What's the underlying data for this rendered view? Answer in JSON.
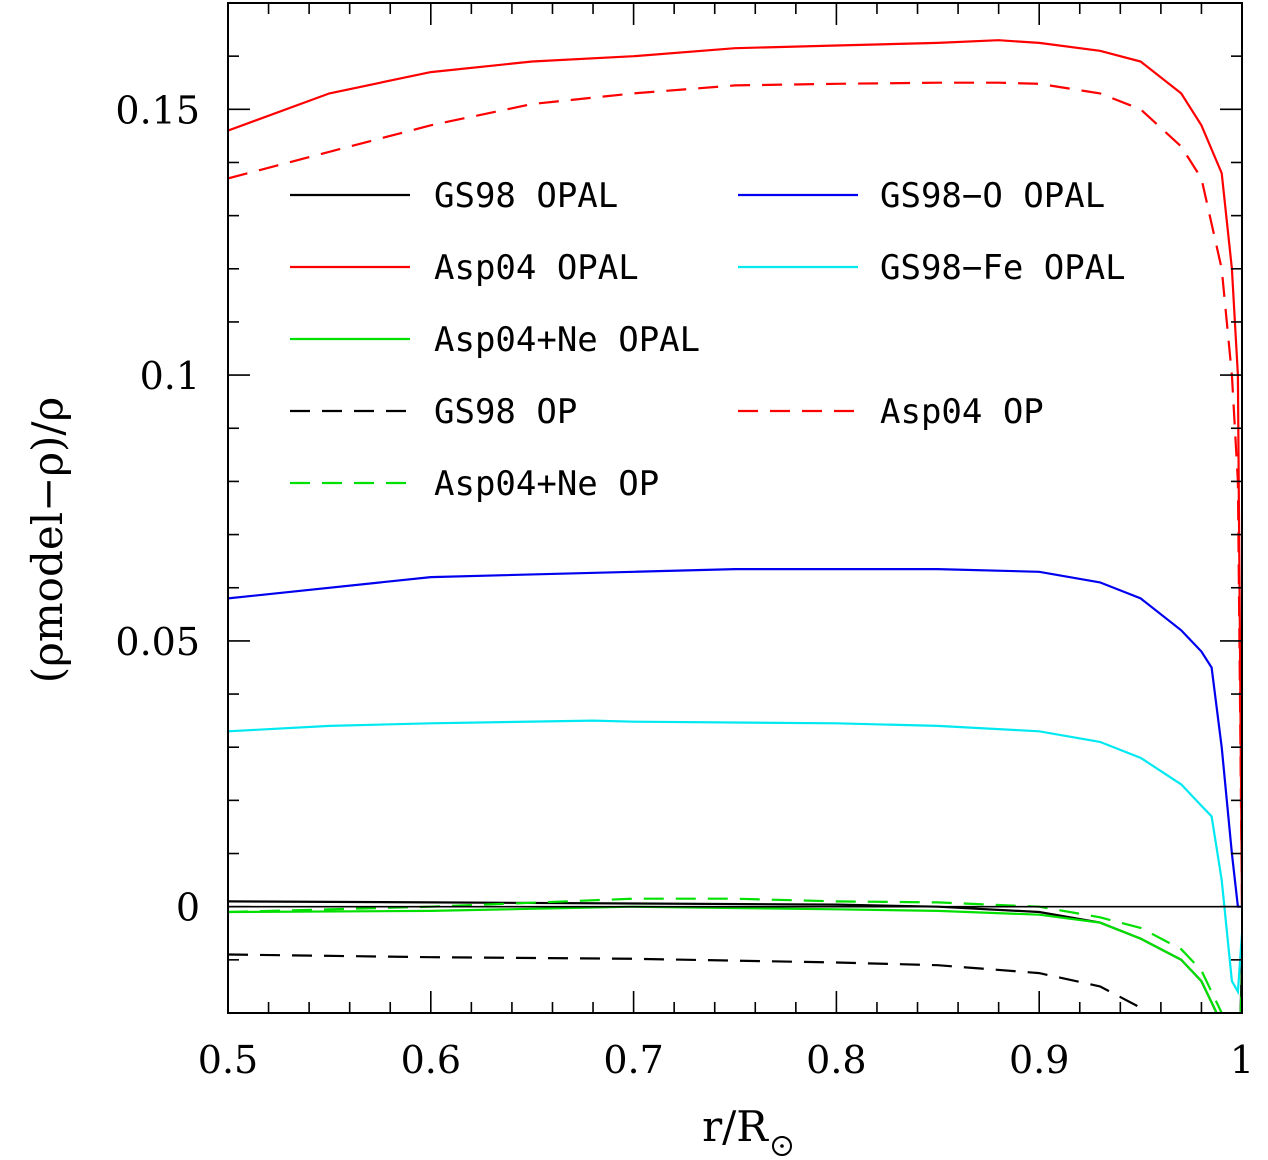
{
  "chart_data": {
    "type": "line",
    "xlabel": "r/R",
    "ylabel": "(ρmodel−ρ)/ρ",
    "xlim": [
      0.5,
      1.0
    ],
    "ylim": [
      -0.02,
      0.17
    ],
    "x_ticks": [
      0.5,
      0.6,
      0.7,
      0.8,
      0.9,
      1.0
    ],
    "x_tick_labels": [
      "0.5",
      "0.6",
      "0.7",
      "0.8",
      "0.9",
      "1"
    ],
    "y_ticks": [
      0,
      0.05,
      0.1,
      0.15
    ],
    "y_tick_labels": [
      "0",
      "0.05",
      "0.1",
      "0.15"
    ],
    "reference_line": 0,
    "grid": false,
    "legend_placement": "upper-center",
    "colors": {
      "black": "#000000",
      "red": "#ff0000",
      "green": "#00e000",
      "blue": "#0000ee",
      "cyan": "#00e8f0"
    },
    "series": [
      {
        "name": "GS98 OPAL",
        "color": "#000000",
        "dash": "solid",
        "x": [
          0.5,
          0.6,
          0.7,
          0.8,
          0.85,
          0.9,
          0.93,
          0.95,
          0.97,
          0.98,
          0.99,
          0.995,
          0.998,
          1.0
        ],
        "y": [
          0.001,
          0.0008,
          0.0006,
          0.0004,
          0.0,
          -0.001,
          -0.003,
          -0.006,
          -0.01,
          -0.014,
          -0.022,
          -0.033,
          -0.038,
          -0.01
        ]
      },
      {
        "name": "Asp04 OPAL",
        "color": "#ff0000",
        "dash": "solid",
        "x": [
          0.5,
          0.55,
          0.6,
          0.65,
          0.7,
          0.75,
          0.8,
          0.85,
          0.88,
          0.9,
          0.93,
          0.95,
          0.97,
          0.98,
          0.99,
          0.995,
          0.998,
          1.0
        ],
        "y": [
          0.146,
          0.153,
          0.157,
          0.159,
          0.16,
          0.1615,
          0.162,
          0.1625,
          0.163,
          0.1625,
          0.161,
          0.159,
          0.153,
          0.147,
          0.138,
          0.12,
          0.1,
          0.0
        ]
      },
      {
        "name": "Asp04+Ne OPAL",
        "color": "#00e000",
        "dash": "solid",
        "x": [
          0.5,
          0.6,
          0.7,
          0.8,
          0.85,
          0.9,
          0.93,
          0.95,
          0.97,
          0.98,
          0.99,
          0.995,
          0.998,
          1.0
        ],
        "y": [
          -0.001,
          -0.0008,
          0.0,
          -0.0005,
          -0.0008,
          -0.0015,
          -0.003,
          -0.006,
          -0.01,
          -0.014,
          -0.022,
          -0.034,
          -0.039,
          -0.015
        ]
      },
      {
        "name": "GS98 OP",
        "color": "#000000",
        "dash": "dashed",
        "x": [
          0.5,
          0.6,
          0.7,
          0.8,
          0.85,
          0.9,
          0.93,
          0.95,
          0.97,
          0.98,
          0.99,
          0.995
        ],
        "y": [
          -0.009,
          -0.0095,
          -0.0098,
          -0.0105,
          -0.011,
          -0.0125,
          -0.015,
          -0.019,
          -0.025,
          -0.03,
          -0.037,
          -0.042
        ]
      },
      {
        "name": "Asp04+Ne OP",
        "color": "#00e000",
        "dash": "dashed",
        "x": [
          0.5,
          0.6,
          0.7,
          0.75,
          0.8,
          0.85,
          0.9,
          0.93,
          0.95,
          0.97,
          0.98,
          0.99,
          0.995,
          0.998,
          1.0
        ],
        "y": [
          -0.001,
          0.0,
          0.0015,
          0.0015,
          0.001,
          0.0008,
          0.0,
          -0.002,
          -0.004,
          -0.008,
          -0.012,
          -0.02,
          -0.032,
          -0.037,
          -0.012
        ]
      },
      {
        "name": "GS98−O OPAL",
        "color": "#0000ee",
        "dash": "solid",
        "x": [
          0.5,
          0.6,
          0.7,
          0.75,
          0.8,
          0.85,
          0.9,
          0.93,
          0.95,
          0.97,
          0.98,
          0.985,
          0.99,
          0.995,
          0.998,
          1.0
        ],
        "y": [
          0.058,
          0.062,
          0.063,
          0.0635,
          0.0635,
          0.0635,
          0.063,
          0.061,
          0.058,
          0.052,
          0.048,
          0.045,
          0.03,
          0.01,
          0.0,
          0.0
        ]
      },
      {
        "name": "GS98−Fe OPAL",
        "color": "#00e8f0",
        "dash": "solid",
        "x": [
          0.5,
          0.55,
          0.6,
          0.68,
          0.7,
          0.8,
          0.85,
          0.9,
          0.93,
          0.95,
          0.97,
          0.98,
          0.985,
          0.99,
          0.995,
          0.998,
          1.0
        ],
        "y": [
          0.033,
          0.034,
          0.0345,
          0.035,
          0.0348,
          0.0345,
          0.034,
          0.033,
          0.031,
          0.028,
          0.023,
          0.019,
          0.017,
          0.005,
          -0.014,
          -0.016,
          -0.005
        ]
      },
      {
        "name": "Asp04 OP",
        "color": "#ff0000",
        "dash": "dashed",
        "x": [
          0.5,
          0.55,
          0.6,
          0.65,
          0.7,
          0.75,
          0.8,
          0.85,
          0.88,
          0.9,
          0.93,
          0.95,
          0.97,
          0.98,
          0.99,
          0.995,
          0.998,
          1.0
        ],
        "y": [
          0.137,
          0.142,
          0.147,
          0.151,
          0.153,
          0.1545,
          0.1548,
          0.155,
          0.155,
          0.1548,
          0.153,
          0.15,
          0.143,
          0.137,
          0.12,
          0.1,
          0.08,
          0.0
        ]
      }
    ],
    "legend_rows": [
      [
        "GS98 OPAL",
        "GS98−O OPAL"
      ],
      [
        "Asp04 OPAL",
        "GS98−Fe OPAL"
      ],
      [
        "Asp04+Ne OPAL",
        null
      ],
      [
        "GS98 OP",
        "Asp04 OP"
      ],
      [
        "Asp04+Ne OP",
        null
      ]
    ]
  }
}
